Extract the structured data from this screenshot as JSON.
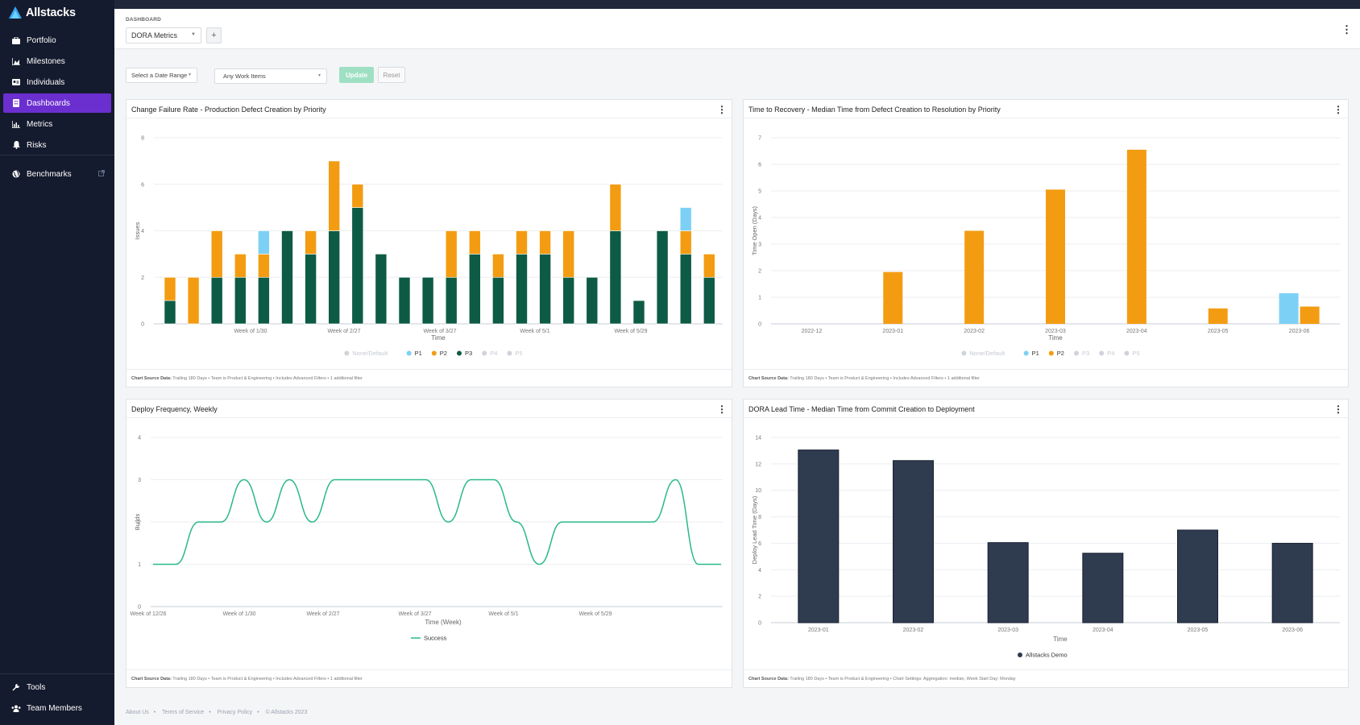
{
  "app": {
    "name": "Allstacks"
  },
  "sidebar": {
    "items": [
      {
        "label": "Portfolio",
        "icon": "briefcase-icon"
      },
      {
        "label": "Milestones",
        "icon": "chart-area-icon"
      },
      {
        "label": "Individuals",
        "icon": "id-card-icon"
      },
      {
        "label": "Dashboards",
        "icon": "dashboard-icon",
        "active": true
      },
      {
        "label": "Metrics",
        "icon": "bar-chart-icon"
      },
      {
        "label": "Risks",
        "icon": "bell-icon"
      }
    ],
    "benchmarks": {
      "label": "Benchmarks",
      "icon": "globe-icon"
    },
    "bottom": [
      {
        "label": "Tools",
        "icon": "wrench-icon"
      },
      {
        "label": "Team Members",
        "icon": "users-icon"
      }
    ]
  },
  "header": {
    "crumb": "DASHBOARD",
    "dashboard": "DORA Metrics",
    "add": "+"
  },
  "filters": {
    "date_range": "Select a Date Range",
    "work_items": "Any Work Items",
    "update": "Update",
    "reset": "Reset"
  },
  "footer": [
    "About Us",
    "Terms of Service",
    "Privacy Policy",
    "© Allstacks 2023"
  ],
  "colors": {
    "P1": "#7dd0f5",
    "P2": "#f39c12",
    "P3": "#0d5b45",
    "None": "#cfd3d8",
    "navy": "#2f3b4f",
    "line": "#2bb98b",
    "accent": "#6b2fd0"
  },
  "cards": {
    "cfr": {
      "title": "Change Failure Rate - Production Defect Creation by Priority",
      "footer_label": "Chart Source Data:",
      "footer": "Trailing 180 Days • Team is Product & Engineering • Includes Advanced Filters • 1 additional filter"
    },
    "ttr": {
      "title": "Time to Recovery - Median Time from Defect Creation to Resolution by Priority",
      "footer_label": "Chart Source Data:",
      "footer": "Trailing 180 Days • Team is Product & Engineering • Includes Advanced Filters • 1 additional filter"
    },
    "df": {
      "title": "Deploy Frequency, Weekly",
      "footer_label": "Chart Source Data:",
      "footer": "Trailing 180 Days • Team is Product & Engineering • Includes Advanced Filters • 1 additional filter"
    },
    "lt": {
      "title": "DORA Lead Time - Median Time from Commit Creation to Deployment",
      "footer_label": "Chart Source Data:",
      "footer": "Trailing 180 Days • Team is Product & Engineering • Chart Settings: Aggregation: median, Week Start Day: Monday"
    }
  },
  "chart_data": [
    {
      "type": "bar",
      "stacked": true,
      "title": "Change Failure Rate - Production Defect Creation by Priority",
      "xlabel": "Time",
      "ylabel": "Issues",
      "ylim": [
        0,
        8
      ],
      "yticks": [
        0,
        2,
        4,
        6,
        8
      ],
      "xticks": [
        "Week of 1/30",
        "Week of 2/27",
        "Week of 3/27",
        "Week of 5/1",
        "Week of 5/29"
      ],
      "legend": [
        {
          "name": "None/Default",
          "active": false
        },
        {
          "name": "P1",
          "active": true
        },
        {
          "name": "P2",
          "active": true
        },
        {
          "name": "P3",
          "active": true
        },
        {
          "name": "P4",
          "active": false
        },
        {
          "name": "P5",
          "active": false
        }
      ],
      "series": [
        {
          "name": "P3",
          "values": [
            1,
            0,
            2,
            2,
            2,
            4,
            3,
            4,
            5,
            3,
            2,
            2,
            2,
            3,
            2,
            3,
            3,
            2,
            2,
            4,
            1,
            4,
            3,
            2
          ]
        },
        {
          "name": "P2",
          "values": [
            1,
            2,
            2,
            1,
            1,
            0,
            1,
            3,
            1,
            0,
            0,
            0,
            2,
            1,
            1,
            1,
            1,
            2,
            0,
            2,
            0,
            0,
            1,
            1
          ]
        },
        {
          "name": "P1",
          "values": [
            0,
            0,
            0,
            0,
            1,
            0,
            0,
            0,
            0,
            0,
            0,
            0,
            0,
            0,
            0,
            0,
            0,
            0,
            0,
            0,
            0,
            0,
            1,
            0
          ]
        }
      ]
    },
    {
      "type": "bar",
      "title": "Time to Recovery - Median Time from Defect Creation to Resolution by Priority",
      "xlabel": "Time",
      "ylabel": "Time Open (Days)",
      "ylim": [
        0,
        7
      ],
      "yticks": [
        0,
        1,
        2,
        3,
        4,
        5,
        6,
        7
      ],
      "categories": [
        "2022-12",
        "2023-01",
        "2023-02",
        "2023-03",
        "2023-04",
        "2023-05",
        "2023-06"
      ],
      "legend": [
        {
          "name": "None/Default",
          "active": false
        },
        {
          "name": "P1",
          "active": true
        },
        {
          "name": "P2",
          "active": true
        },
        {
          "name": "P3",
          "active": false
        },
        {
          "name": "P4",
          "active": false
        },
        {
          "name": "P5",
          "active": false
        }
      ],
      "series": [
        {
          "name": "P1",
          "values": [
            0,
            0,
            0,
            0,
            0,
            0,
            1.15
          ]
        },
        {
          "name": "P2",
          "values": [
            0,
            1.95,
            3.5,
            5.05,
            6.55,
            0.58,
            0.65
          ]
        }
      ]
    },
    {
      "type": "line",
      "title": "Deploy Frequency, Weekly",
      "xlabel": "Time (Week)",
      "ylabel": "Builds",
      "ylim": [
        0,
        4
      ],
      "yticks": [
        0,
        1,
        2,
        3,
        4
      ],
      "xticks": [
        "Week of 12/26",
        "Week of 1/30",
        "Week of 2/27",
        "Week of 3/27",
        "Week of 5/1",
        "Week of 5/29"
      ],
      "series": [
        {
          "name": "Success",
          "values": [
            1,
            1,
            2,
            2,
            3,
            2,
            3,
            2,
            3,
            3,
            3,
            3,
            3,
            2,
            3,
            3,
            2,
            1,
            2,
            2,
            2,
            2,
            2,
            3,
            1,
            1
          ]
        }
      ]
    },
    {
      "type": "bar",
      "title": "DORA Lead Time - Median Time from Commit Creation to Deployment",
      "xlabel": "Time",
      "ylabel": "Deploy Lead Time (Days)",
      "ylim": [
        0,
        14
      ],
      "yticks": [
        0,
        2,
        4,
        6,
        8,
        10,
        12,
        14
      ],
      "categories": [
        "2023-01",
        "2023-02",
        "2023-03",
        "2023-04",
        "2023-05",
        "2023-06"
      ],
      "series": [
        {
          "name": "Allstacks Demo",
          "values": [
            13.05,
            12.25,
            6.05,
            5.25,
            7.0,
            6.0
          ]
        }
      ]
    }
  ]
}
